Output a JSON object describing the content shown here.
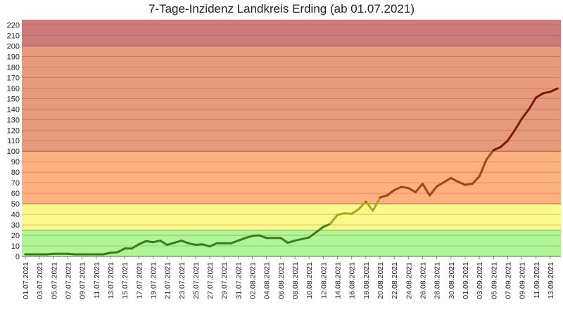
{
  "chart_data": {
    "type": "line",
    "title": "7-Tage-Inzidenz Landkreis Erding (ab 01.07.2021)",
    "xlabel": "",
    "ylabel": "",
    "ylim": [
      0,
      225
    ],
    "yticks": [
      0,
      10,
      20,
      30,
      40,
      50,
      60,
      70,
      80,
      90,
      100,
      110,
      120,
      130,
      140,
      150,
      160,
      170,
      180,
      190,
      200,
      210,
      220
    ],
    "grid": true,
    "legend": "none",
    "bands": [
      {
        "from": 0,
        "to": 25,
        "color": "#b0f596"
      },
      {
        "from": 25,
        "to": 50,
        "color": "#fafa8c"
      },
      {
        "from": 50,
        "to": 100,
        "color": "#fcb17e"
      },
      {
        "from": 100,
        "to": 200,
        "color": "#e69a7c"
      },
      {
        "from": 200,
        "to": 225,
        "color": "#cc7b7b"
      }
    ],
    "x_tick_labels": [
      "01.07.2021",
      "03.07.2021",
      "05.07.2021",
      "07.07.2021",
      "09.07.2021",
      "11.07.2021",
      "13.07.2021",
      "15.07.2021",
      "17.07.2021",
      "19.07.2021",
      "21.07.2021",
      "23.07.2021",
      "25.07.2021",
      "27.07.2021",
      "29.07.2021",
      "31.07.2021",
      "02.08.2021",
      "04.08.2021",
      "06.08.2021",
      "08.08.2021",
      "10.08.2021",
      "12.08.2021",
      "14.08.2021",
      "16.08.2021",
      "18.08.2021",
      "20.08.2021",
      "22.08.2021",
      "24.08.2021",
      "26.08.2021",
      "28.08.2021",
      "30.08.2021",
      "01.09.2021",
      "03.09.2021",
      "05.09.2021",
      "07.09.2021",
      "09.09.2021",
      "11.09.2021",
      "13.09.2021"
    ],
    "x": [
      "01.07.2021",
      "02.07.2021",
      "03.07.2021",
      "04.07.2021",
      "05.07.2021",
      "06.07.2021",
      "07.07.2021",
      "08.07.2021",
      "09.07.2021",
      "10.07.2021",
      "11.07.2021",
      "12.07.2021",
      "13.07.2021",
      "14.07.2021",
      "15.07.2021",
      "16.07.2021",
      "17.07.2021",
      "18.07.2021",
      "19.07.2021",
      "20.07.2021",
      "21.07.2021",
      "22.07.2021",
      "23.07.2021",
      "24.07.2021",
      "25.07.2021",
      "26.07.2021",
      "27.07.2021",
      "28.07.2021",
      "29.07.2021",
      "30.07.2021",
      "31.07.2021",
      "01.08.2021",
      "02.08.2021",
      "03.08.2021",
      "04.08.2021",
      "05.08.2021",
      "06.08.2021",
      "07.08.2021",
      "08.08.2021",
      "09.08.2021",
      "10.08.2021",
      "11.08.2021",
      "12.08.2021",
      "13.08.2021",
      "14.08.2021",
      "15.08.2021",
      "16.08.2021",
      "17.08.2021",
      "18.08.2021",
      "19.08.2021",
      "20.08.2021",
      "21.08.2021",
      "22.08.2021",
      "23.08.2021",
      "24.08.2021",
      "25.08.2021",
      "26.08.2021",
      "27.08.2021",
      "28.08.2021",
      "29.08.2021",
      "30.08.2021",
      "31.08.2021",
      "01.09.2021",
      "02.09.2021",
      "03.09.2021",
      "04.09.2021",
      "05.09.2021",
      "06.09.2021",
      "07.09.2021",
      "08.09.2021",
      "09.09.2021",
      "10.09.2021",
      "11.09.2021",
      "12.09.2021",
      "13.09.2021",
      "14.09.2021"
    ],
    "series": [
      {
        "values": [
          2,
          2,
          2,
          2,
          2.5,
          2.5,
          2.5,
          2,
          2,
          2,
          2,
          2,
          3.5,
          4,
          7.5,
          7.5,
          11.5,
          14.5,
          13.5,
          15,
          11,
          13,
          15,
          12.5,
          11,
          11.5,
          9.5,
          12.5,
          12.5,
          12.5,
          15,
          17.5,
          19.5,
          20,
          17.5,
          17.5,
          17.5,
          13,
          15,
          16.5,
          18,
          23,
          28,
          31,
          39.5,
          41,
          40.5,
          45,
          52,
          43.5,
          56,
          58,
          63,
          66,
          65,
          61,
          69,
          58,
          66.5,
          70.5,
          74.5,
          71,
          68,
          69,
          76,
          92,
          101,
          104,
          110,
          120,
          131,
          140,
          151,
          155,
          156.5,
          159.5
        ],
        "colors": {
          "green": "#3a7d1f",
          "olive": "#a8a81a",
          "orange": "#a0490f",
          "red": "#7a1a0e"
        }
      }
    ]
  }
}
